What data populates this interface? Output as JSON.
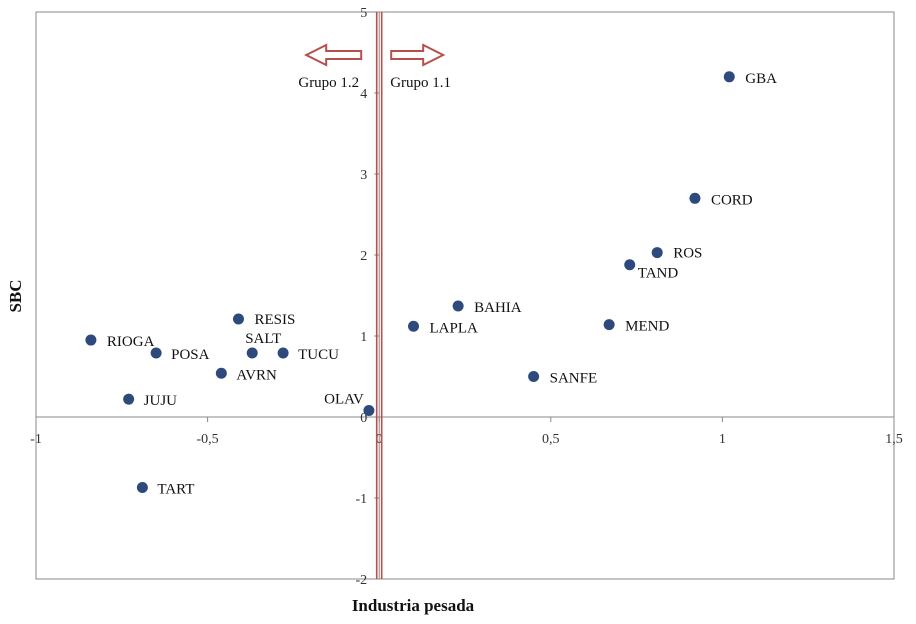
{
  "chart_data": {
    "type": "scatter",
    "xlabel": "Industria pesada",
    "ylabel": "SBC",
    "xlim": [
      -1,
      1.5
    ],
    "ylim": [
      -2,
      5
    ],
    "x_ticks": [
      {
        "value": -1,
        "label": "-1"
      },
      {
        "value": -0.5,
        "label": "-0,5"
      },
      {
        "value": 0,
        "label": "0"
      },
      {
        "value": 0.5,
        "label": "0,5"
      },
      {
        "value": 1,
        "label": "1"
      },
      {
        "value": 1.5,
        "label": "1,5"
      }
    ],
    "y_ticks": [
      {
        "value": -2,
        "label": "-2"
      },
      {
        "value": -1,
        "label": "-1"
      },
      {
        "value": 0,
        "label": "0"
      },
      {
        "value": 1,
        "label": "1"
      },
      {
        "value": 2,
        "label": "2"
      },
      {
        "value": 3,
        "label": "3"
      },
      {
        "value": 4,
        "label": "4"
      },
      {
        "value": 5,
        "label": "5"
      }
    ],
    "grid": false,
    "marker_color": "#2e4a7d",
    "divider_color": "#b5504c",
    "divider_x": 0,
    "points": [
      {
        "label": "GBA",
        "x": 1.02,
        "y": 4.2
      },
      {
        "label": "CORD",
        "x": 0.92,
        "y": 2.7
      },
      {
        "label": "ROS",
        "x": 0.81,
        "y": 2.03
      },
      {
        "label": "TAND",
        "x": 0.73,
        "y": 1.88
      },
      {
        "label": "MEND",
        "x": 0.67,
        "y": 1.14
      },
      {
        "label": "BAHIA",
        "x": 0.23,
        "y": 1.37
      },
      {
        "label": "LAPLA",
        "x": 0.1,
        "y": 1.12
      },
      {
        "label": "SANFE",
        "x": 0.45,
        "y": 0.5
      },
      {
        "label": "OLAV",
        "x": -0.03,
        "y": 0.08
      },
      {
        "label": "RESIS",
        "x": -0.41,
        "y": 1.21
      },
      {
        "label": "SALT",
        "x": -0.37,
        "y": 0.79
      },
      {
        "label": "TUCU",
        "x": -0.28,
        "y": 0.79
      },
      {
        "label": "AVRN",
        "x": -0.46,
        "y": 0.54
      },
      {
        "label": "RIOGA",
        "x": -0.84,
        "y": 0.95
      },
      {
        "label": "POSA",
        "x": -0.65,
        "y": 0.79
      },
      {
        "label": "JUJU",
        "x": -0.73,
        "y": 0.22
      },
      {
        "label": "TART",
        "x": -0.69,
        "y": -0.87
      }
    ],
    "annotations": [
      {
        "text": "Grupo 1.2",
        "direction": "left"
      },
      {
        "text": "Grupo 1.1",
        "direction": "right"
      }
    ]
  }
}
